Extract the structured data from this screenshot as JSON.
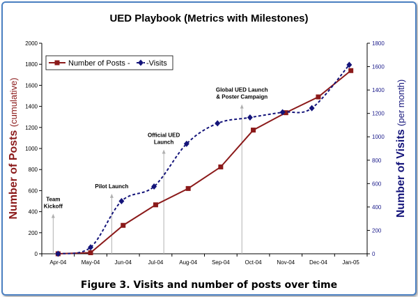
{
  "chart_data": {
    "type": "line",
    "title": "UED Playbook (Metrics with Milestones)",
    "categories": [
      "Apr-04",
      "May-04",
      "Jun-04",
      "Jul-04",
      "Aug-04",
      "Sep-04",
      "Oct-04",
      "Nov-04",
      "Dec-04",
      "Jan-05"
    ],
    "y_left": {
      "label_main": "Number of Posts",
      "label_sub": "(cumulative)",
      "range": [
        0,
        2000
      ],
      "ticks": [
        "0",
        "200",
        "400",
        "600",
        "800",
        "1000",
        "1200",
        "1400",
        "1600",
        "1800",
        "2000"
      ]
    },
    "y_right": {
      "label_main": "Number of Visits",
      "label_sub": "(per month)",
      "range": [
        0,
        1800
      ],
      "ticks": [
        "0",
        "200",
        "400",
        "600",
        "800",
        "1000",
        "1200",
        "1400",
        "1600",
        "1800"
      ]
    },
    "series": [
      {
        "name": "Number of Posts",
        "axis": "left",
        "color": "#8b1a1a",
        "style": "solid",
        "marker": "square",
        "x": [
          0,
          1,
          2,
          3,
          4,
          5,
          6,
          7,
          8,
          9
        ],
        "values": [
          0,
          10,
          270,
          465,
          620,
          825,
          1175,
          1340,
          1490,
          1740
        ]
      },
      {
        "name": "Visits",
        "axis": "right",
        "color": "#14147a",
        "style": "dashed",
        "marker": "diamond",
        "x": [
          0,
          1,
          1.95,
          2.95,
          3.95,
          4.9,
          5.9,
          6.9,
          7.8,
          8.95
        ],
        "values": [
          0,
          55,
          450,
          575,
          940,
          1115,
          1165,
          1210,
          1245,
          1615
        ]
      }
    ],
    "legend_entries": [
      "Number of Posts -",
      "-Visits"
    ],
    "legend_position": "top-left",
    "annotations": [
      {
        "lines": [
          "Team",
          "Kickoff"
        ],
        "x": -0.15,
        "arrow_top": 380
      },
      {
        "lines": [
          "Pilot Launch"
        ],
        "x": 1.65,
        "arrow_top": 570
      },
      {
        "lines": [
          "Official UED",
          "Launch"
        ],
        "x": 3.25,
        "arrow_top": 990
      },
      {
        "lines": [
          "Global UED Launch",
          "& Poster Campaign"
        ],
        "x": 5.65,
        "arrow_top": 1420
      }
    ],
    "grid": false,
    "colors": {
      "posts": "#8b1a1a",
      "visits": "#14147a",
      "frame_border": "#4a7fc1",
      "arrow": "#b0b0b0"
    }
  },
  "caption": "Figure 3. Visits and number of posts over time"
}
